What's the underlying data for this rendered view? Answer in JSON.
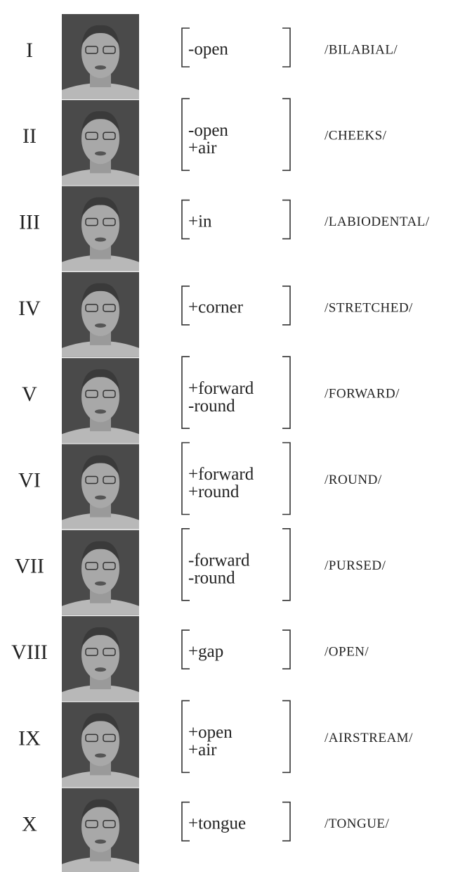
{
  "rows": [
    {
      "numeral": "I",
      "features": [
        "-open"
      ],
      "label": "/BILABIAL/"
    },
    {
      "numeral": "II",
      "features": [
        "-open",
        "+air"
      ],
      "label": "/CHEEKS/"
    },
    {
      "numeral": "III",
      "features": [
        "+in"
      ],
      "label": "/LABIODENTAL/"
    },
    {
      "numeral": "IV",
      "features": [
        "+corner"
      ],
      "label": "/STRETCHED/"
    },
    {
      "numeral": "V",
      "features": [
        "+forward",
        "-round"
      ],
      "label": "/FORWARD/"
    },
    {
      "numeral": "VI",
      "features": [
        "+forward",
        "+round"
      ],
      "label": "/ROUND/"
    },
    {
      "numeral": "VII",
      "features": [
        "-forward",
        "-round"
      ],
      "label": "/PURSED/"
    },
    {
      "numeral": "VIII",
      "features": [
        "+gap"
      ],
      "label": "/OPEN/"
    },
    {
      "numeral": "IX",
      "features": [
        "+open",
        "+air"
      ],
      "label": "/AIRSTREAM/"
    },
    {
      "numeral": "X",
      "features": [
        "+tongue"
      ],
      "label": "/TONGUE/"
    }
  ]
}
